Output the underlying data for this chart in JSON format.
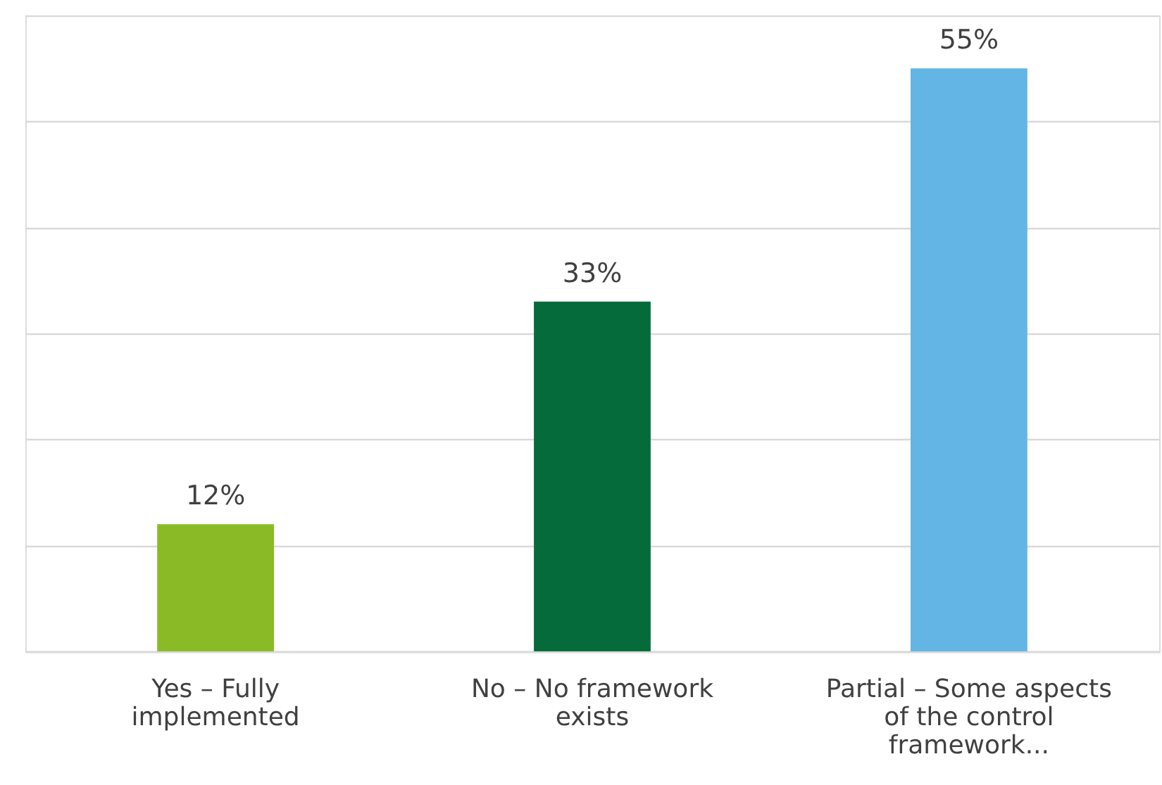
{
  "chart_data": {
    "type": "bar",
    "categories": [
      "Yes – Fully implemented",
      "No – No framework exists",
      "Partial – Some aspects of the control framework..."
    ],
    "values": [
      12,
      33,
      55
    ],
    "colors": [
      "#8abb26",
      "#066b3a",
      "#62b5e5"
    ],
    "value_labels": [
      "12%",
      "33%",
      "55%"
    ],
    "ylim": [
      0,
      60
    ],
    "yticks": [
      0,
      10,
      20,
      30,
      40,
      50,
      60
    ],
    "grid": "y",
    "tick_labels": "x"
  }
}
